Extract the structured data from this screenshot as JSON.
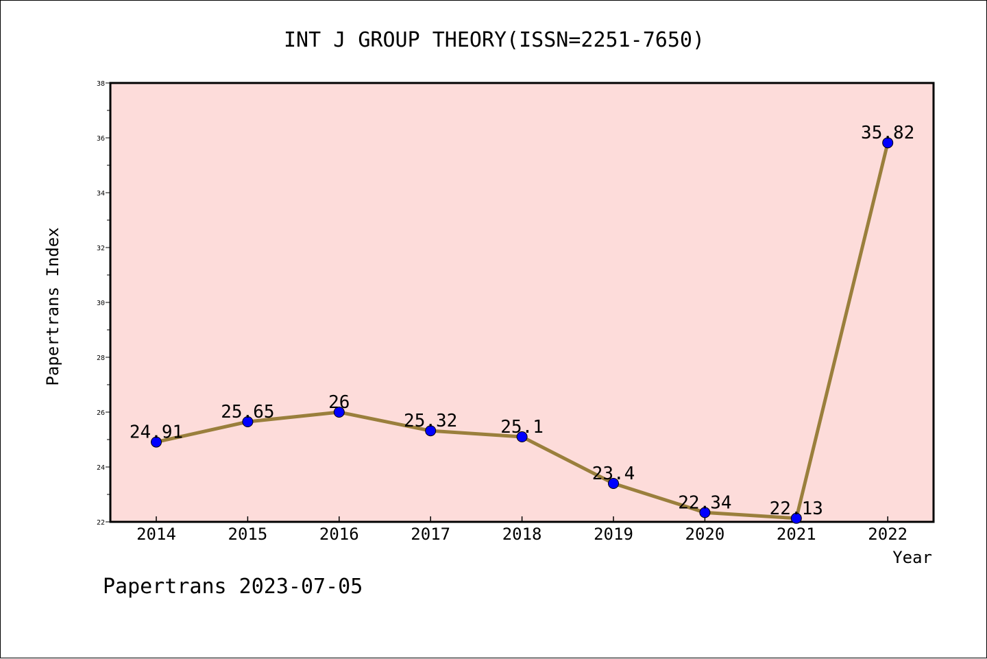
{
  "chart_data": {
    "type": "line",
    "title": "INT J GROUP THEORY(ISSN=2251-7650)",
    "xlabel": "Year",
    "ylabel": "Papertrans Index",
    "categories": [
      "2014",
      "2015",
      "2016",
      "2017",
      "2018",
      "2019",
      "2020",
      "2021",
      "2022"
    ],
    "series": [
      {
        "values": [
          24.91,
          25.65,
          26,
          25.32,
          25.1,
          23.4,
          22.34,
          22.13,
          35.82
        ],
        "data_labels": [
          "24.91",
          "25.65",
          "26",
          "25.32",
          "25.1",
          "23.4",
          "22.34",
          "22.13",
          "35.82"
        ],
        "line_color": "#9a7f3c",
        "marker_color": "#0000ff"
      }
    ],
    "ylim": [
      22,
      38
    ],
    "yticks": [
      22,
      24,
      26,
      28,
      30,
      32,
      34,
      36,
      38
    ],
    "grid": false,
    "legend": "none",
    "plot_background": "#fddcda"
  },
  "footer": {
    "text": "Papertrans 2023-07-05"
  }
}
